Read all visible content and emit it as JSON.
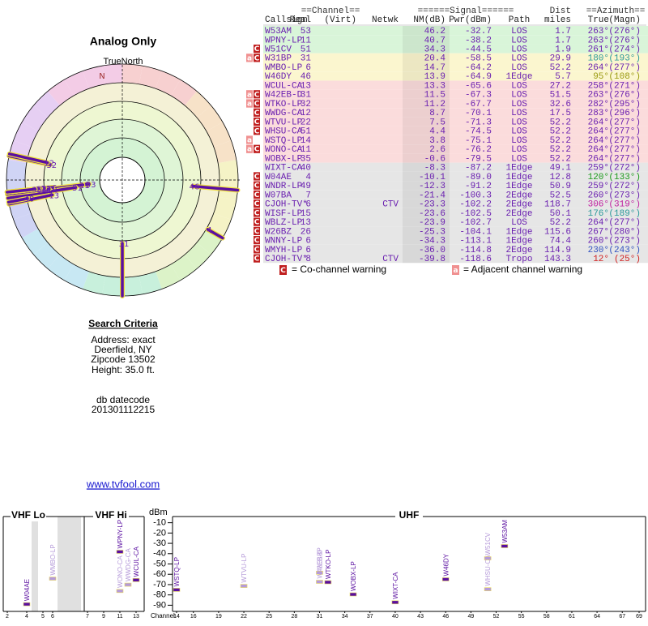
{
  "left": {
    "title": "Analog Only",
    "north_label": "TrueNorth",
    "n": "N",
    "polar": {
      "rlim": [
        75,
        -25
      ],
      "points": [
        {
          "label": "53",
          "az": 263,
          "nm": 46.2
        },
        {
          "label": "11",
          "az": 263,
          "nm": 40.7
        },
        {
          "label": "51",
          "az": 261,
          "nm": 34.3
        },
        {
          "label": "31",
          "az": 180,
          "nm": 20.4
        },
        {
          "label": "6",
          "az": 264,
          "nm": 14.7
        },
        {
          "label": "46",
          "az": 95,
          "nm": 13.9
        },
        {
          "label": "13",
          "az": 258,
          "nm": 13.3
        },
        {
          "label": "31",
          "az": 263,
          "nm": 11.5
        },
        {
          "label": "32",
          "az": 282,
          "nm": 11.2
        },
        {
          "label": "12",
          "az": 283,
          "nm": 8.7
        },
        {
          "label": "22",
          "az": 264,
          "nm": 7.5
        },
        {
          "label": "51",
          "az": 264,
          "nm": 4.4
        },
        {
          "label": "14",
          "az": 264,
          "nm": 3.8
        },
        {
          "label": "11",
          "az": 264,
          "nm": 2.6
        },
        {
          "label": "35",
          "az": 264,
          "nm": -0.6
        },
        {
          "label": "40",
          "az": 259,
          "nm": -8.3
        },
        {
          "label": "4",
          "az": 120,
          "nm": -10.1
        }
      ]
    }
  },
  "search": {
    "title": "Search Criteria",
    "lines": [
      "Address: exact",
      "Deerfield, NY",
      "Zipcode 13502",
      "Height: 35.0 ft."
    ],
    "datecode_label": "db datecode",
    "datecode": "201301112215"
  },
  "link": "www.tvfool.com",
  "table": {
    "header1": {
      "channel": "==Channel==",
      "signal": "======Signal======",
      "dist": "Dist",
      "azimuth": "==Azimuth=="
    },
    "header2": [
      "Callsign",
      "Real",
      "(Virt)",
      "Netwk",
      "NM(dB)",
      "Pwr(dBm)",
      "Path",
      "miles",
      "True",
      "(Magn)"
    ],
    "rows": [
      {
        "callsign": "W53AM",
        "real": "53",
        "nm": "46.2",
        "pwr": "-32.7",
        "path": "LOS",
        "dist": "1.7",
        "true": "263°",
        "magn": "(276°)",
        "bg": "#d9f5d9"
      },
      {
        "callsign": "WPNY-LP",
        "real": "11",
        "nm": "40.7",
        "pwr": "-38.2",
        "path": "LOS",
        "dist": "1.7",
        "true": "263°",
        "magn": "(276°)",
        "bg": "#d9f5d9"
      },
      {
        "warn": [
          "C"
        ],
        "callsign": "W51CV",
        "real": "51",
        "nm": "34.3",
        "pwr": "-44.5",
        "path": "LOS",
        "dist": "1.9",
        "true": "261°",
        "magn": "(274°)",
        "bg": "#d9f5d9"
      },
      {
        "warn": [
          "a",
          "C"
        ],
        "callsign": "W31BP",
        "real": "31",
        "nm": "20.4",
        "pwr": "-58.5",
        "path": "LOS",
        "dist": "29.9",
        "true": "180°",
        "magn": "(193°)",
        "bg": "#fbf6cf",
        "az_color": "#2a9a9a"
      },
      {
        "callsign": "WMBO-LP",
        "real": "6",
        "nm": "14.7",
        "pwr": "-64.2",
        "path": "LOS",
        "dist": "52.2",
        "true": "264°",
        "magn": "(277°)",
        "bg": "#fbf6cf"
      },
      {
        "callsign": "W46DY",
        "real": "46",
        "nm": "13.9",
        "pwr": "-64.9",
        "path": "1Edge",
        "dist": "5.7",
        "true": "95°",
        "magn": "(108°)",
        "bg": "#fbf6cf",
        "az_color": "#9a9a10"
      },
      {
        "callsign": "WCUL-CA",
        "real": "13",
        "nm": "13.3",
        "pwr": "-65.6",
        "path": "LOS",
        "dist": "27.2",
        "true": "258°",
        "magn": "(271°)",
        "bg": "#fbdcdc"
      },
      {
        "warn": [
          "a",
          "C"
        ],
        "callsign": "W42EB-D",
        "real": "31",
        "nm": "11.5",
        "pwr": "-67.3",
        "path": "LOS",
        "dist": "51.5",
        "true": "263°",
        "magn": "(276°)",
        "bg": "#fbdcdc"
      },
      {
        "warn": [
          "a",
          "C"
        ],
        "callsign": "WTKO-LP",
        "real": "32",
        "nm": "11.2",
        "pwr": "-67.7",
        "path": "LOS",
        "dist": "32.6",
        "true": "282°",
        "magn": "(295°)",
        "bg": "#fbdcdc"
      },
      {
        "warn": [
          "C"
        ],
        "callsign": "WWDG-CA",
        "real": "12",
        "nm": "8.7",
        "pwr": "-70.1",
        "path": "LOS",
        "dist": "17.5",
        "true": "283°",
        "magn": "(296°)",
        "bg": "#fbdcdc"
      },
      {
        "warn": [
          "C"
        ],
        "callsign": "WTVU-LP",
        "real": "22",
        "nm": "7.5",
        "pwr": "-71.3",
        "path": "LOS",
        "dist": "52.2",
        "true": "264°",
        "magn": "(277°)",
        "bg": "#fbdcdc"
      },
      {
        "warn": [
          "C"
        ],
        "callsign": "WHSU-CA",
        "real": "51",
        "nm": "4.4",
        "pwr": "-74.5",
        "path": "LOS",
        "dist": "52.2",
        "true": "264°",
        "magn": "(277°)",
        "bg": "#fbdcdc"
      },
      {
        "warn": [
          "a"
        ],
        "callsign": "WSTQ-LP",
        "real": "14",
        "nm": "3.8",
        "pwr": "-75.1",
        "path": "LOS",
        "dist": "52.2",
        "true": "264°",
        "magn": "(277°)",
        "bg": "#fbdcdc"
      },
      {
        "warn": [
          "a",
          "C"
        ],
        "callsign": "WONO-CA",
        "real": "11",
        "nm": "2.6",
        "pwr": "-76.2",
        "path": "LOS",
        "dist": "52.2",
        "true": "264°",
        "magn": "(277°)",
        "bg": "#fbdcdc"
      },
      {
        "callsign": "WOBX-LP",
        "real": "35",
        "nm": "-0.6",
        "pwr": "-79.5",
        "path": "LOS",
        "dist": "52.2",
        "true": "264°",
        "magn": "(277°)",
        "bg": "#fbdcdc"
      },
      {
        "callsign": "WIXT-CA",
        "real": "40",
        "nm": "-8.3",
        "pwr": "-87.2",
        "path": "1Edge",
        "dist": "49.1",
        "true": "259°",
        "magn": "(272°)",
        "bg": "#e6e6e6"
      },
      {
        "warn": [
          "C"
        ],
        "callsign": "W04AE",
        "real": "4",
        "nm": "-10.1",
        "pwr": "-89.0",
        "path": "1Edge",
        "dist": "12.8",
        "true": "120°",
        "magn": "(133°)",
        "bg": "#e6e6e6",
        "az_color": "#1a9a1a"
      },
      {
        "warn": [
          "C"
        ],
        "callsign": "WNDR-LP",
        "real": "49",
        "nm": "-12.3",
        "pwr": "-91.2",
        "path": "1Edge",
        "dist": "50.9",
        "true": "259°",
        "magn": "(272°)",
        "bg": "#e6e6e6"
      },
      {
        "warn": [
          "C"
        ],
        "callsign": "W07BA",
        "real": "7",
        "nm": "-21.4",
        "pwr": "-100.3",
        "path": "2Edge",
        "dist": "52.5",
        "true": "260°",
        "magn": "(273°)",
        "bg": "#e6e6e6"
      },
      {
        "warn": [
          "C"
        ],
        "callsign": "CJOH-TV*",
        "real": "6",
        "netwk": "CTV",
        "nm": "-23.3",
        "pwr": "-102.2",
        "path": "2Edge",
        "dist": "118.7",
        "true": "306°",
        "magn": "(319°)",
        "bg": "#e6e6e6",
        "az_color": "#c020a0"
      },
      {
        "warn": [
          "C"
        ],
        "callsign": "WISF-LP",
        "real": "15",
        "nm": "-23.6",
        "pwr": "-102.5",
        "path": "2Edge",
        "dist": "50.1",
        "true": "176°",
        "magn": "(189°)",
        "bg": "#e6e6e6",
        "az_color": "#2a9a9a"
      },
      {
        "warn": [
          "C"
        ],
        "callsign": "WBLZ-LP",
        "real": "13",
        "nm": "-23.9",
        "pwr": "-102.7",
        "path": "LOS",
        "dist": "52.2",
        "true": "264°",
        "magn": "(277°)",
        "bg": "#e6e6e6"
      },
      {
        "warn": [
          "C"
        ],
        "callsign": "W26BZ",
        "real": "26",
        "nm": "-25.3",
        "pwr": "-104.1",
        "path": "1Edge",
        "dist": "115.6",
        "true": "267°",
        "magn": "(280°)",
        "bg": "#e6e6e6"
      },
      {
        "warn": [
          "C"
        ],
        "callsign": "WNNY-LP",
        "real": "6",
        "nm": "-34.3",
        "pwr": "-113.1",
        "path": "1Edge",
        "dist": "74.4",
        "true": "260°",
        "magn": "(273°)",
        "bg": "#e6e6e6"
      },
      {
        "warn": [
          "C"
        ],
        "callsign": "WMYH-LP",
        "real": "6",
        "nm": "-36.0",
        "pwr": "-114.8",
        "path": "2Edge",
        "dist": "114.9",
        "true": "230°",
        "magn": "(243°)",
        "bg": "#e6e6e6",
        "az_color": "#3050c0"
      },
      {
        "warn": [
          "C"
        ],
        "callsign": "CJOH-TV*",
        "real": "8",
        "netwk": "CTV",
        "nm": "-39.8",
        "pwr": "-118.6",
        "path": "Tropo",
        "dist": "143.3",
        "true": "12°",
        "magn": "(25°)",
        "bg": "#e6e6e6",
        "az_color": "#d02020"
      }
    ]
  },
  "legend": {
    "co": {
      "badge": "C",
      "text": "= Co-channel warning"
    },
    "adj": {
      "badge": "a",
      "text": "= Adjacent channel warning"
    }
  },
  "spectrum": {
    "sections": [
      "VHF Lo",
      "VHF Hi",
      "UHF"
    ],
    "ylabel": "dBm",
    "xlabel": "Channel",
    "ylim": [
      -4,
      -96
    ],
    "yticks": [
      -10,
      -20,
      -30,
      -40,
      -50,
      -60,
      -70,
      -80,
      -90
    ],
    "xticks": [
      2,
      4,
      5,
      6,
      7,
      9,
      11,
      13,
      14,
      16,
      19,
      22,
      25,
      28,
      31,
      34,
      37,
      40,
      43,
      46,
      49,
      52,
      55,
      58,
      61,
      64,
      67,
      69
    ],
    "stations": [
      {
        "name": "W04AE",
        "channel": 4,
        "dbm": -89.0,
        "color": "#5a0fa0"
      },
      {
        "name": "WMBO-LP",
        "channel": 6,
        "dbm": -64.2,
        "color": "#b59ad9"
      },
      {
        "name": "WONO-CA",
        "channel": 11,
        "dbm": -76.2,
        "color": "#b59ad9"
      },
      {
        "name": "WPNY-LP",
        "channel": 11,
        "dbm": -38.2,
        "color": "#5a0fa0"
      },
      {
        "name": "WWDG-CA",
        "channel": 12,
        "dbm": -70.1,
        "color": "#b59ad9"
      },
      {
        "name": "WCUL-CA",
        "channel": 13,
        "dbm": -65.6,
        "color": "#5a0fa0"
      },
      {
        "name": "WSTQ-LP",
        "channel": 14,
        "dbm": -75.1,
        "color": "#5a0fa0"
      },
      {
        "name": "WTVU-LP",
        "channel": 22,
        "dbm": -71.3,
        "color": "#b59ad9"
      },
      {
        "name": "W31BP",
        "channel": 31,
        "dbm": -58.5,
        "color": "#b59ad9"
      },
      {
        "name": "W42EB-D",
        "channel": 31,
        "dbm": -67.3,
        "color": "#b59ad9"
      },
      {
        "name": "WTKO-LP",
        "channel": 32,
        "dbm": -67.7,
        "color": "#5a0fa0"
      },
      {
        "name": "WOBX-LP",
        "channel": 35,
        "dbm": -79.5,
        "color": "#5a0fa0"
      },
      {
        "name": "WIXT-CA",
        "channel": 40,
        "dbm": -87.2,
        "color": "#5a0fa0"
      },
      {
        "name": "W46DY",
        "channel": 46,
        "dbm": -64.9,
        "color": "#5a0fa0"
      },
      {
        "name": "WHSU-CA",
        "channel": 51,
        "dbm": -74.5,
        "color": "#b59ad9"
      },
      {
        "name": "W51CV",
        "channel": 51,
        "dbm": -44.5,
        "color": "#b59ad9"
      },
      {
        "name": "W53AM",
        "channel": 53,
        "dbm": -32.7,
        "color": "#5a0fa0"
      }
    ]
  }
}
